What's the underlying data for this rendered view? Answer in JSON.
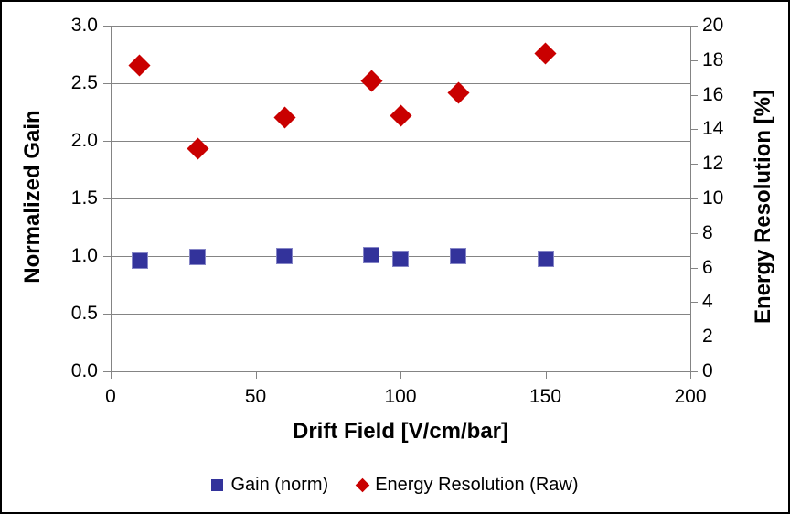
{
  "canvas": {
    "background": "#FFFFFF",
    "border_color": "#000000"
  },
  "chart_data": {
    "type": "scatter",
    "title": "",
    "xlabel": "Drift Field [V/cm/bar]",
    "xlim": [
      0,
      200
    ],
    "x_ticks": [
      0,
      50,
      100,
      150,
      200
    ],
    "left_axis": {
      "label": "Normalized Gain",
      "lim": [
        0,
        3
      ],
      "tick_values": [
        0,
        0.5,
        1,
        1.5,
        2,
        2.5,
        3
      ],
      "tick_labels": [
        "0.0",
        "0.5",
        "1.0",
        "1.5",
        "2.0",
        "2.5",
        "3.0"
      ]
    },
    "right_axis": {
      "label": "Energy Resolution [%]",
      "lim": [
        0,
        20
      ],
      "tick_values": [
        0,
        2,
        4,
        6,
        8,
        10,
        12,
        14,
        16,
        18,
        20
      ],
      "tick_labels": [
        "0",
        "2",
        "4",
        "6",
        "8",
        "10",
        "12",
        "14",
        "16",
        "18",
        "20"
      ]
    },
    "x": [
      10,
      30,
      60,
      90,
      100,
      120,
      150
    ],
    "series": [
      {
        "name": "Gain (norm)",
        "axis": "left",
        "marker": "square",
        "color": "#33339B",
        "edge_color": "#8585C6",
        "values": [
          0.96,
          0.99,
          1.0,
          1.01,
          0.98,
          1.0,
          0.98
        ]
      },
      {
        "name": "Energy Resolution (Raw)",
        "axis": "right",
        "marker": "diamond",
        "color": "#C90000",
        "edge_color": "#C90000",
        "values": [
          17.7,
          12.9,
          14.7,
          16.8,
          14.8,
          16.1,
          18.4
        ]
      }
    ],
    "grid": {
      "horizontal": true,
      "vertical": false,
      "color": "#848484"
    },
    "legend_position": "bottom"
  }
}
